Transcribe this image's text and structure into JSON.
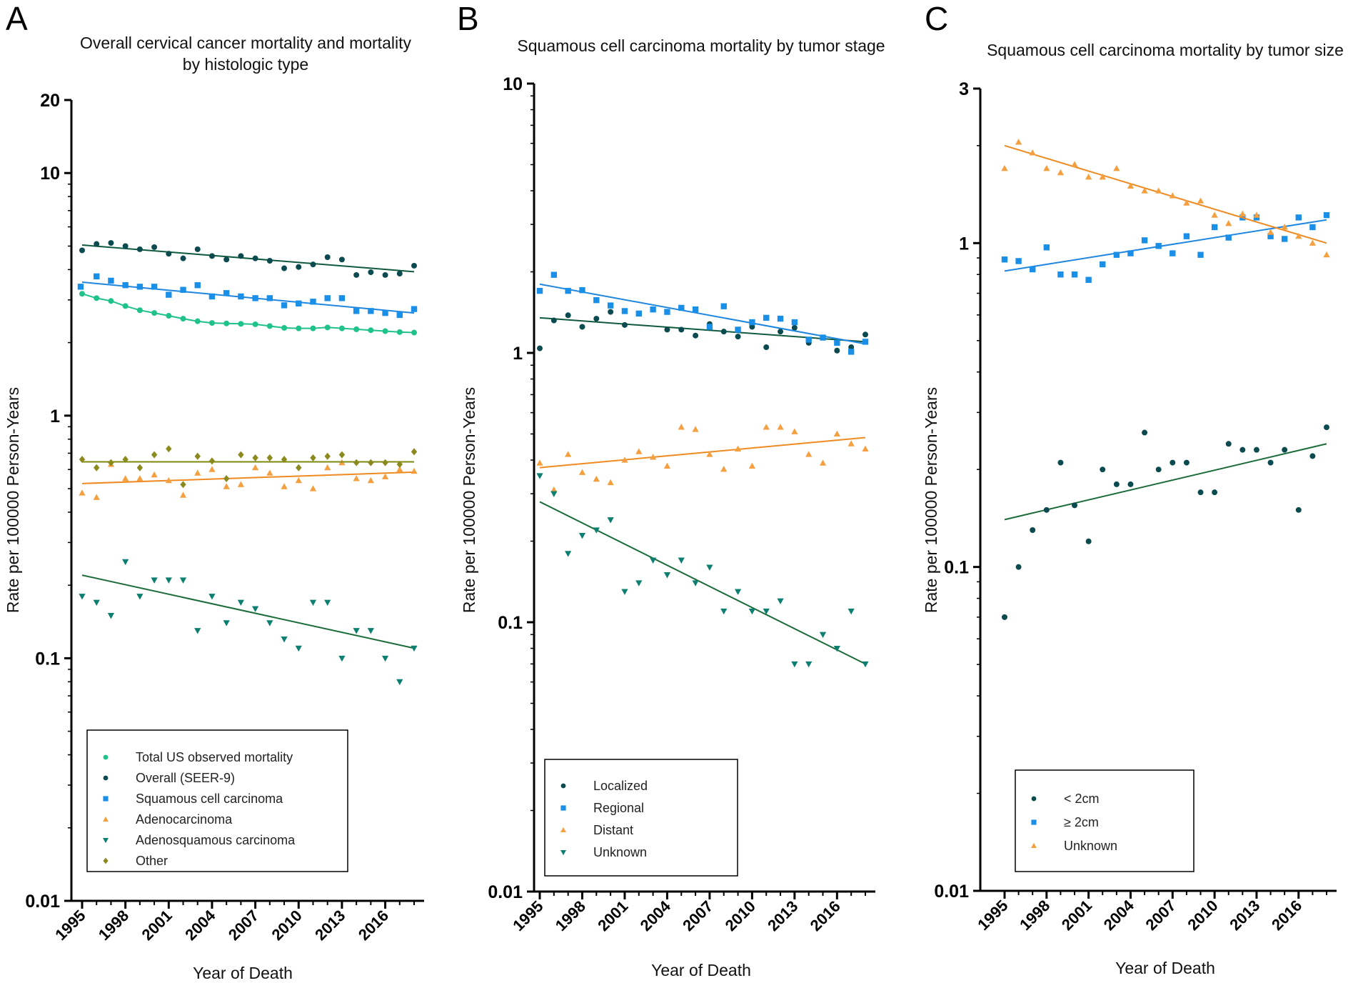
{
  "colors": {
    "total": "#1FC28A",
    "overall": "#0B4A4E",
    "squamous": "#1A8FE8",
    "adeno": "#F5A040",
    "adenosquamous": "#0C7F70",
    "other": "#8A8A1E",
    "localized": "#0B4A4E",
    "regional": "#1A8FE8",
    "distant": "#F5A040",
    "unknown_stage": "#0C7F70",
    "lt2": "#0B4A4E",
    "ge2": "#1A8FE8",
    "unknown_size": "#F5A040",
    "line_overall": "#0F5A3E",
    "line_squamous": "#1F86E0",
    "line_adeno": "#EF8A22",
    "line_adenosquamous": "#1C6B3A",
    "line_other": "#7D8A10"
  },
  "chart_data": [
    {
      "type": "scatter",
      "panel": "A",
      "title_lines": [
        "Overall cervical cancer mortality and mortality",
        "by histologic type"
      ],
      "xlabel": "Year of Death",
      "ylabel": "Rate per 100000 Person-Years",
      "yscale": "log",
      "ylim": [
        0.01,
        20
      ],
      "xlim": [
        1994.6,
        2018.4
      ],
      "ytick_labels": [
        "0.01",
        "0.1",
        "1",
        "10",
        "20"
      ],
      "yticks": [
        0.01,
        0.1,
        1,
        10,
        20
      ],
      "xticks": [
        1995,
        1998,
        2001,
        2004,
        2007,
        2010,
        2013,
        2016
      ],
      "xtick_labels": [
        "1995",
        "1998",
        "2001",
        "2004",
        "2007",
        "2010",
        "2013",
        "2016"
      ],
      "legend_position": "bottom-center",
      "series": [
        {
          "key": "total",
          "name": "Total US observed mortality",
          "marker": "circle",
          "fit": "smooth",
          "x": [
            1995,
            1996,
            1997,
            1998,
            1999,
            2000,
            2001,
            2002,
            2003,
            2004,
            2005,
            2006,
            2007,
            2008,
            2009,
            2010,
            2011,
            2012,
            2013,
            2014,
            2015,
            2016,
            2017,
            2018
          ],
          "y": [
            3.18,
            3.05,
            2.97,
            2.83,
            2.72,
            2.65,
            2.58,
            2.51,
            2.45,
            2.41,
            2.4,
            2.39,
            2.38,
            2.34,
            2.3,
            2.29,
            2.29,
            2.31,
            2.29,
            2.27,
            2.25,
            2.23,
            2.21,
            2.2
          ]
        },
        {
          "key": "overall",
          "name": "Overall (SEER-9)",
          "marker": "circle",
          "fit": [
            5.05,
            3.92
          ],
          "x": [
            1995,
            1996,
            1997,
            1998,
            1999,
            2000,
            2001,
            2002,
            2003,
            2004,
            2005,
            2006,
            2007,
            2008,
            2009,
            2010,
            2011,
            2012,
            2013,
            2014,
            2015,
            2016,
            2017,
            2018
          ],
          "y": [
            4.8,
            5.1,
            5.15,
            5.0,
            4.85,
            4.95,
            4.65,
            4.45,
            4.85,
            4.55,
            4.4,
            4.55,
            4.45,
            4.35,
            4.05,
            4.1,
            4.2,
            4.5,
            4.4,
            3.8,
            3.9,
            3.8,
            3.85,
            4.15
          ]
        },
        {
          "key": "squamous",
          "name": "Squamous cell carcinoma",
          "marker": "square",
          "fit": [
            3.55,
            2.65
          ],
          "x": [
            1994.9,
            1996,
            1997,
            1998,
            1999,
            2000,
            2001,
            2002,
            2003,
            2004,
            2005,
            2006,
            2007,
            2008,
            2009,
            2010,
            2011,
            2012,
            2013,
            2014,
            2015,
            2016,
            2017,
            2018
          ],
          "y": [
            3.4,
            3.75,
            3.6,
            3.45,
            3.4,
            3.4,
            3.15,
            3.3,
            3.45,
            3.1,
            3.2,
            3.1,
            3.05,
            3.05,
            2.85,
            2.9,
            2.95,
            3.05,
            3.05,
            2.7,
            2.7,
            2.65,
            2.6,
            2.75
          ]
        },
        {
          "key": "adeno",
          "name": "Adenocarcinoma",
          "marker": "triangle-up",
          "fit": [
            0.525,
            0.585
          ],
          "x": [
            1995,
            1996,
            1997,
            1998,
            1999,
            2000,
            2001,
            2002,
            2003,
            2004,
            2005,
            2006,
            2007,
            2008,
            2009,
            2010,
            2011,
            2012,
            2013,
            2014,
            2015,
            2016,
            2017,
            2018
          ],
          "y": [
            0.48,
            0.46,
            0.63,
            0.55,
            0.55,
            0.57,
            0.54,
            0.47,
            0.58,
            0.6,
            0.51,
            0.52,
            0.61,
            0.58,
            0.51,
            0.54,
            0.5,
            0.61,
            0.64,
            0.55,
            0.54,
            0.56,
            0.6,
            0.59
          ]
        },
        {
          "key": "adenosquamous",
          "name": "Adenosquamous carcinoma",
          "marker": "triangle-down",
          "fit": [
            0.22,
            0.11
          ],
          "x": [
            1995,
            1996,
            1997,
            1998,
            1999,
            2000,
            2001,
            2002,
            2003,
            2004,
            2005,
            2006,
            2007,
            2008,
            2009,
            2010,
            2011,
            2012,
            2013,
            2014,
            2015,
            2016,
            2017,
            2018
          ],
          "y": [
            0.18,
            0.17,
            0.15,
            0.25,
            0.18,
            0.21,
            0.21,
            0.21,
            0.13,
            0.18,
            0.14,
            0.17,
            0.16,
            0.14,
            0.12,
            0.11,
            0.17,
            0.17,
            0.1,
            0.13,
            0.13,
            0.1,
            0.08,
            0.11
          ]
        },
        {
          "key": "other",
          "name": "Other",
          "marker": "diamond",
          "fit": [
            0.645,
            0.645
          ],
          "x": [
            1995,
            1996,
            1997,
            1998,
            1999,
            2000,
            2001,
            2002,
            2003,
            2004,
            2005,
            2006,
            2007,
            2008,
            2009,
            2010,
            2011,
            2012,
            2013,
            2014,
            2015,
            2016,
            2017,
            2018
          ],
          "y": [
            0.66,
            0.61,
            0.64,
            0.66,
            0.61,
            0.69,
            0.73,
            0.52,
            0.68,
            0.65,
            0.55,
            0.69,
            0.67,
            0.67,
            0.66,
            0.61,
            0.67,
            0.68,
            0.69,
            0.64,
            0.64,
            0.64,
            0.63,
            0.71
          ]
        }
      ]
    },
    {
      "type": "scatter",
      "panel": "B",
      "title_lines": [
        "Squamous cell carcinoma mortality by tumor stage"
      ],
      "xlabel": "Year of Death",
      "ylabel": "Rate per 100000 Person-Years",
      "yscale": "log",
      "ylim": [
        0.01,
        10
      ],
      "xlim": [
        1994.6,
        2018.4
      ],
      "ytick_labels": [
        "0.01",
        "0.1",
        "1",
        "10"
      ],
      "yticks": [
        0.01,
        0.1,
        1,
        10
      ],
      "xticks": [
        1995,
        1998,
        2001,
        2004,
        2007,
        2010,
        2013,
        2016
      ],
      "xtick_labels": [
        "1995",
        "1998",
        "2001",
        "2004",
        "2007",
        "2010",
        "2013",
        "2016"
      ],
      "legend_position": "bottom-left",
      "series": [
        {
          "key": "localized",
          "name": "Localized",
          "marker": "circle",
          "fit": [
            1.35,
            1.1
          ],
          "x": [
            1995,
            1996,
            1997,
            1998,
            1999,
            2000,
            2001,
            2002,
            2003,
            2004,
            2005,
            2006,
            2007,
            2008,
            2009,
            2010,
            2011,
            2012,
            2013,
            2014,
            2015,
            2016,
            2017,
            2018
          ],
          "y": [
            1.04,
            1.32,
            1.38,
            1.25,
            1.34,
            1.42,
            1.27,
            1.4,
            1.45,
            1.22,
            1.22,
            1.16,
            1.28,
            1.2,
            1.15,
            1.25,
            1.05,
            1.2,
            1.24,
            1.09,
            1.14,
            1.02,
            1.05,
            1.17
          ]
        },
        {
          "key": "regional",
          "name": "Regional",
          "marker": "square",
          "fit": [
            1.8,
            1.08
          ],
          "x": [
            1995,
            1996,
            1997,
            1998,
            1999,
            2000,
            2001,
            2002,
            2003,
            2004,
            2005,
            2006,
            2007,
            2008,
            2009,
            2010,
            2011,
            2012,
            2013,
            2014,
            2015,
            2016,
            2017,
            2018
          ],
          "y": [
            1.7,
            1.95,
            1.7,
            1.71,
            1.57,
            1.5,
            1.43,
            1.4,
            1.45,
            1.42,
            1.47,
            1.45,
            1.25,
            1.49,
            1.22,
            1.3,
            1.35,
            1.34,
            1.3,
            1.12,
            1.14,
            1.09,
            1.01,
            1.1
          ]
        },
        {
          "key": "distant",
          "name": "Distant",
          "marker": "triangle-up",
          "fit": [
            0.375,
            0.485
          ],
          "x": [
            1995,
            1996,
            1997,
            1998,
            1999,
            2000,
            2001,
            2002,
            2003,
            2004,
            2005,
            2006,
            2007,
            2008,
            2009,
            2010,
            2011,
            2012,
            2013,
            2014,
            2015,
            2016,
            2017,
            2018
          ],
          "y": [
            0.39,
            0.31,
            0.42,
            0.36,
            0.34,
            0.33,
            0.4,
            0.43,
            0.41,
            0.38,
            0.53,
            0.52,
            0.42,
            0.37,
            0.44,
            0.38,
            0.53,
            0.53,
            0.51,
            0.42,
            0.39,
            0.5,
            0.46,
            0.44
          ]
        },
        {
          "key": "unknown_stage",
          "name": "Unknown",
          "marker": "triangle-down",
          "fit": [
            0.28,
            0.07
          ],
          "x": [
            1995,
            1996,
            1997,
            1998,
            1999,
            2000,
            2001,
            2002,
            2003,
            2004,
            2005,
            2006,
            2007,
            2008,
            2009,
            2010,
            2011,
            2012,
            2013,
            2014,
            2015,
            2016,
            2017,
            2018
          ],
          "y": [
            0.35,
            0.3,
            0.18,
            0.21,
            0.22,
            0.24,
            0.13,
            0.14,
            0.17,
            0.15,
            0.17,
            0.14,
            0.16,
            0.11,
            0.13,
            0.11,
            0.11,
            0.12,
            0.07,
            0.07,
            0.09,
            0.08,
            0.11,
            0.07
          ]
        }
      ]
    },
    {
      "type": "scatter",
      "panel": "C",
      "title_lines": [
        "Squamous cell carcinoma mortality by tumor size"
      ],
      "xlabel": "Year of Death",
      "ylabel": "Rate per 100000 Person-Years",
      "yscale": "log",
      "ylim": [
        0.01,
        3
      ],
      "xlim": [
        1994.6,
        2018.4
      ],
      "ytick_labels": [
        "0.01",
        "0.1",
        "1",
        "3"
      ],
      "yticks": [
        0.01,
        0.1,
        1,
        3
      ],
      "xticks": [
        1995,
        1998,
        2001,
        2004,
        2007,
        2010,
        2013,
        2016
      ],
      "xtick_labels": [
        "1995",
        "1998",
        "2001",
        "2004",
        "2007",
        "2010",
        "2013",
        "2016"
      ],
      "legend_position": "bottom-left",
      "series": [
        {
          "key": "lt2",
          "name": "< 2cm",
          "marker": "circle",
          "fit": [
            0.14,
            0.24
          ],
          "x": [
            1995,
            1996,
            1997,
            1998,
            1999,
            2000,
            2001,
            2002,
            2003,
            2004,
            2005,
            2006,
            2007,
            2008,
            2009,
            2010,
            2011,
            2012,
            2013,
            2014,
            2015,
            2016,
            2017,
            2018
          ],
          "y": [
            0.07,
            0.1,
            0.13,
            0.15,
            0.21,
            0.155,
            0.12,
            0.2,
            0.18,
            0.18,
            0.26,
            0.2,
            0.21,
            0.21,
            0.17,
            0.17,
            0.24,
            0.23,
            0.23,
            0.21,
            0.23,
            0.15,
            0.22,
            0.27
          ]
        },
        {
          "key": "ge2",
          "name": "≥ 2cm",
          "marker": "square",
          "fit": [
            0.82,
            1.18
          ],
          "x": [
            1995,
            1996,
            1997,
            1998,
            1999,
            2000,
            2001,
            2002,
            2003,
            2004,
            2005,
            2006,
            2007,
            2008,
            2009,
            2010,
            2011,
            2012,
            2013,
            2014,
            2015,
            2016,
            2017,
            2018
          ],
          "y": [
            0.89,
            0.88,
            0.83,
            0.97,
            0.8,
            0.8,
            0.77,
            0.86,
            0.92,
            0.93,
            1.02,
            0.98,
            0.93,
            1.05,
            0.92,
            1.12,
            1.04,
            1.2,
            1.2,
            1.05,
            1.03,
            1.2,
            1.12,
            1.22
          ]
        },
        {
          "key": "unknown_size",
          "name": "Unknown",
          "marker": "triangle-up",
          "fit": [
            2.0,
            1.0
          ],
          "x": [
            1995,
            1996,
            1997,
            1998,
            1999,
            2000,
            2001,
            2002,
            2003,
            2004,
            2005,
            2006,
            2007,
            2008,
            2009,
            2010,
            2011,
            2012,
            2013,
            2014,
            2015,
            2016,
            2017,
            2018
          ],
          "y": [
            1.7,
            2.05,
            1.9,
            1.7,
            1.65,
            1.75,
            1.6,
            1.6,
            1.7,
            1.5,
            1.45,
            1.45,
            1.4,
            1.33,
            1.35,
            1.22,
            1.15,
            1.23,
            1.22,
            1.08,
            1.12,
            1.05,
            1.0,
            0.92
          ]
        }
      ]
    }
  ]
}
